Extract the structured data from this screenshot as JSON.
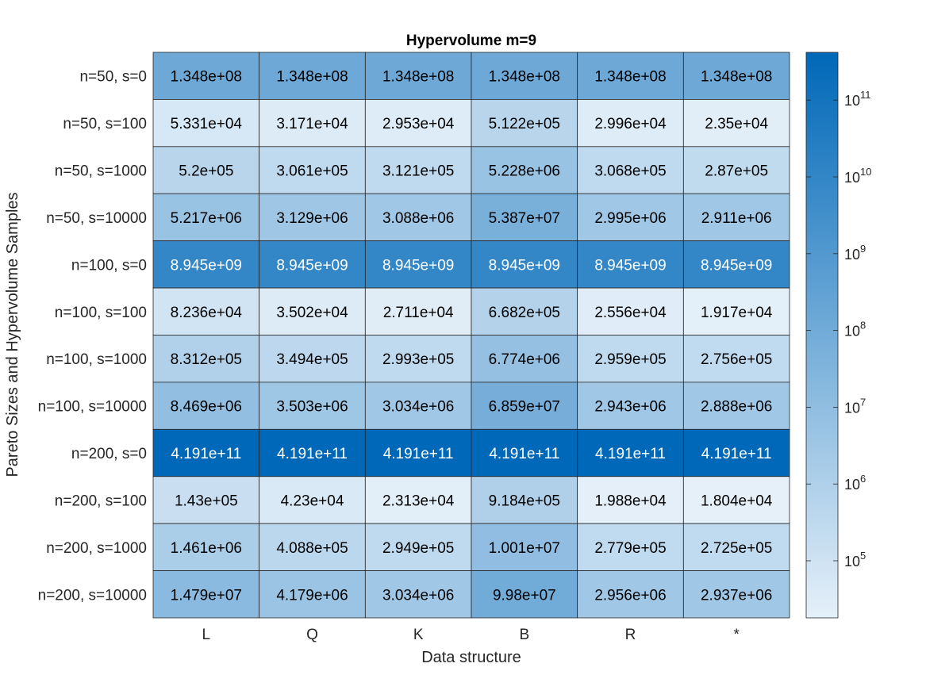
{
  "chart_data": {
    "type": "heatmap",
    "title": "Hypervolume m=9",
    "xlabel": "Data structure",
    "ylabel": "Pareto Sizes and Hypervolume Samples",
    "x_categories": [
      "L",
      "Q",
      "K",
      "B",
      "R",
      "*"
    ],
    "y_categories": [
      "n=50, s=0",
      "n=50, s=100",
      "n=50, s=1000",
      "n=50, s=10000",
      "n=100, s=0",
      "n=100, s=100",
      "n=100, s=1000",
      "n=100, s=10000",
      "n=200, s=0",
      "n=200, s=100",
      "n=200, s=1000",
      "n=200, s=10000"
    ],
    "values": [
      [
        134800000.0,
        134800000.0,
        134800000.0,
        134800000.0,
        134800000.0,
        134800000.0
      ],
      [
        53310.0,
        31710.0,
        29530.0,
        512200.0,
        29960.0,
        23500.0
      ],
      [
        520000.0,
        306100.0,
        312100.0,
        5228000.0,
        306800.0,
        287000.0
      ],
      [
        5217000.0,
        3129000.0,
        3088000.0,
        53870000.0,
        2995000.0,
        2911000.0
      ],
      [
        8945000000.0,
        8945000000.0,
        8945000000.0,
        8945000000.0,
        8945000000.0,
        8945000000.0
      ],
      [
        82360.0,
        35020.0,
        27110.0,
        668200.0,
        25560.0,
        19170.0
      ],
      [
        831200.0,
        349400.0,
        299300.0,
        6774000.0,
        295900.0,
        275600.0
      ],
      [
        8469000.0,
        3503000.0,
        3034000.0,
        68590000.0,
        2943000.0,
        2888000.0
      ],
      [
        419100000000.0,
        419100000000.0,
        419100000000.0,
        419100000000.0,
        419100000000.0,
        419100000000.0
      ],
      [
        143000.0,
        42300.0,
        23130.0,
        918400.0,
        19880.0,
        18040.0
      ],
      [
        1461000.0,
        408800.0,
        294900.0,
        10010000.0,
        277900.0,
        272500.0
      ],
      [
        14790000.0,
        4179000.0,
        3034000.0,
        99800000.0,
        2956000.0,
        2937000.0
      ]
    ],
    "labels": [
      [
        "1.348e+08",
        "1.348e+08",
        "1.348e+08",
        "1.348e+08",
        "1.348e+08",
        "1.348e+08"
      ],
      [
        "5.331e+04",
        "3.171e+04",
        "2.953e+04",
        "5.122e+05",
        "2.996e+04",
        "2.35e+04"
      ],
      [
        "5.2e+05",
        "3.061e+05",
        "3.121e+05",
        "5.228e+06",
        "3.068e+05",
        "2.87e+05"
      ],
      [
        "5.217e+06",
        "3.129e+06",
        "3.088e+06",
        "5.387e+07",
        "2.995e+06",
        "2.911e+06"
      ],
      [
        "8.945e+09",
        "8.945e+09",
        "8.945e+09",
        "8.945e+09",
        "8.945e+09",
        "8.945e+09"
      ],
      [
        "8.236e+04",
        "3.502e+04",
        "2.711e+04",
        "6.682e+05",
        "2.556e+04",
        "1.917e+04"
      ],
      [
        "8.312e+05",
        "3.494e+05",
        "2.993e+05",
        "6.774e+06",
        "2.959e+05",
        "2.756e+05"
      ],
      [
        "8.469e+06",
        "3.503e+06",
        "3.034e+06",
        "6.859e+07",
        "2.943e+06",
        "2.888e+06"
      ],
      [
        "4.191e+11",
        "4.191e+11",
        "4.191e+11",
        "4.191e+11",
        "4.191e+11",
        "4.191e+11"
      ],
      [
        "1.43e+05",
        "4.23e+04",
        "2.313e+04",
        "9.184e+05",
        "1.988e+04",
        "1.804e+04"
      ],
      [
        "1.461e+06",
        "4.088e+05",
        "2.949e+05",
        "1.001e+07",
        "2.779e+05",
        "2.725e+05"
      ],
      [
        "1.479e+07",
        "4.179e+06",
        "3.034e+06",
        "9.98e+07",
        "2.956e+06",
        "2.937e+06"
      ]
    ],
    "colorbar": {
      "scale": "log",
      "range": [
        18040.0,
        419100000000.0
      ],
      "ticks": [
        {
          "exp": 5,
          "base": "10",
          "sup": "5"
        },
        {
          "exp": 6,
          "base": "10",
          "sup": "6"
        },
        {
          "exp": 7,
          "base": "10",
          "sup": "7"
        },
        {
          "exp": 8,
          "base": "10",
          "sup": "8"
        },
        {
          "exp": 9,
          "base": "10",
          "sup": "9"
        },
        {
          "exp": 10,
          "base": "10",
          "sup": "10"
        },
        {
          "exp": 11,
          "base": "10",
          "sup": "11"
        }
      ],
      "color_low": "#e5f0f9",
      "color_high": "#0068b8"
    },
    "grid": true
  }
}
